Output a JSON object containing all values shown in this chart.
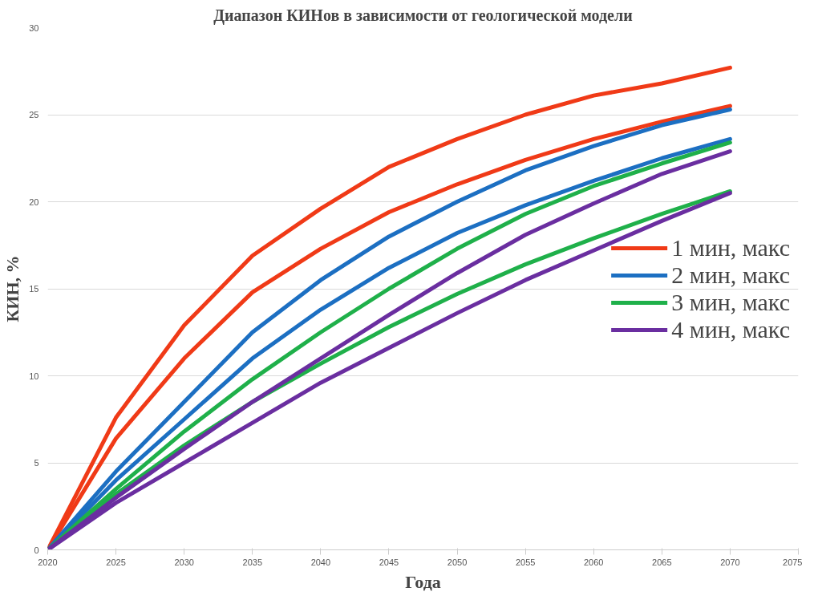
{
  "chart_data": {
    "type": "line",
    "title": "Диапазон КИНов в зависимости от геологической модели",
    "xlabel": "Года",
    "ylabel": "КИН, %",
    "x": [
      2020,
      2025,
      2030,
      2035,
      2040,
      2045,
      2050,
      2055,
      2060,
      2065,
      2070
    ],
    "xlim": [
      2020,
      2075
    ],
    "xticks": [
      2020,
      2025,
      2030,
      2035,
      2040,
      2045,
      2050,
      2055,
      2060,
      2065,
      2070,
      2075
    ],
    "ylim": [
      0,
      30
    ],
    "yticks": [
      0,
      5,
      10,
      15,
      20,
      25,
      30
    ],
    "grid": "y",
    "legend": "right",
    "marker": "none",
    "line_style": "solid",
    "series": [
      {
        "name": "1 мин, макс",
        "color": "#f03a17",
        "values": [
          0,
          7.6,
          12.9,
          16.9,
          19.6,
          22.0,
          23.6,
          25.0,
          26.1,
          26.8,
          27.7
        ]
      },
      {
        "color": "#f03a17",
        "values": [
          0,
          6.4,
          11.0,
          14.8,
          17.3,
          19.4,
          21.0,
          22.4,
          23.6,
          24.6,
          25.5
        ]
      },
      {
        "name": "2 мин, макс",
        "color": "#1c6fc2",
        "values": [
          0,
          4.5,
          8.5,
          12.5,
          15.5,
          18.0,
          20.0,
          21.8,
          23.2,
          24.4,
          25.3
        ]
      },
      {
        "color": "#1c6fc2",
        "values": [
          0,
          4.0,
          7.5,
          11.0,
          13.8,
          16.2,
          18.2,
          19.8,
          21.2,
          22.5,
          23.6
        ]
      },
      {
        "name": "3 мин, макс",
        "color": "#1fb04a",
        "values": [
          0,
          3.5,
          6.8,
          9.8,
          12.5,
          15.0,
          17.3,
          19.3,
          20.9,
          22.2,
          23.4
        ]
      },
      {
        "color": "#1fb04a",
        "values": [
          0,
          3.2,
          6.0,
          8.5,
          10.7,
          12.8,
          14.7,
          16.4,
          17.9,
          19.3,
          20.6
        ]
      },
      {
        "name": "4 мин, макс",
        "color": "#6a2ea0",
        "values": [
          0,
          3.0,
          5.8,
          8.5,
          11.0,
          13.5,
          15.9,
          18.1,
          19.9,
          21.6,
          22.9
        ]
      },
      {
        "color": "#6a2ea0",
        "values": [
          0,
          2.7,
          5.0,
          7.3,
          9.6,
          11.6,
          13.6,
          15.5,
          17.2,
          18.9,
          20.5
        ]
      }
    ]
  }
}
